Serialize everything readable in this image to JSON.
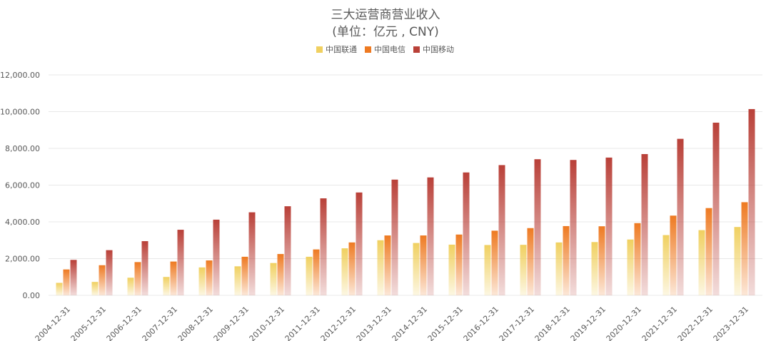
{
  "chart_data": {
    "type": "bar",
    "title": "三大运营商营业收入",
    "subtitle": "(单位：亿元 , CNY)",
    "categories": [
      "2004-12-31",
      "2005-12-31",
      "2006-12-31",
      "2007-12-31",
      "2008-12-31",
      "2009-12-31",
      "2010-12-31",
      "2011-12-31",
      "2012-12-31",
      "2013-12-31",
      "2014-12-31",
      "2015-12-31",
      "2016-12-31",
      "2017-12-31",
      "2018-12-31",
      "2019-12-31",
      "2020-12-31",
      "2021-12-31",
      "2022-12-31",
      "2023-12-31"
    ],
    "series": [
      {
        "name": "中国联通",
        "color": "#f0d060",
        "values": [
          680,
          730,
          960,
          1000,
          1520,
          1580,
          1760,
          2100,
          2560,
          3000,
          2850,
          2760,
          2740,
          2750,
          2880,
          2900,
          3040,
          3280,
          3550,
          3720
        ]
      },
      {
        "name": "中国电信",
        "color": "#ee7a22",
        "values": [
          1410,
          1640,
          1810,
          1840,
          1900,
          2100,
          2250,
          2500,
          2880,
          3260,
          3260,
          3310,
          3520,
          3660,
          3770,
          3760,
          3930,
          4340,
          4750,
          5070
        ]
      },
      {
        "name": "中国移动",
        "color": "#b94038",
        "values": [
          1930,
          2460,
          2950,
          3570,
          4120,
          4520,
          4850,
          5280,
          5600,
          6300,
          6420,
          6690,
          7090,
          7410,
          7370,
          7500,
          7690,
          8520,
          9400,
          10140
        ]
      }
    ],
    "ylim": [
      0,
      12000
    ],
    "yticks": [
      "0.00",
      "2,000.00",
      "4,000.00",
      "6,000.00",
      "8,000.00",
      "10,000.00",
      "12,000.00"
    ],
    "grid": true,
    "legend": "top-center"
  }
}
